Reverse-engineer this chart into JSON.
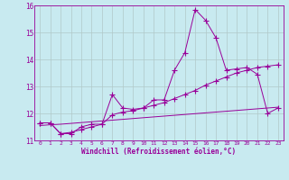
{
  "xlabel": "Windchill (Refroidissement éolien,°C)",
  "background_color": "#c8eaf0",
  "line_color": "#990099",
  "grid_color": "#b0c8c8",
  "xlim": [
    -0.5,
    23.5
  ],
  "ylim": [
    11,
    16
  ],
  "yticks": [
    11,
    12,
    13,
    14,
    15,
    16
  ],
  "xticks": [
    0,
    1,
    2,
    3,
    4,
    5,
    6,
    7,
    8,
    9,
    10,
    11,
    12,
    13,
    14,
    15,
    16,
    17,
    18,
    19,
    20,
    21,
    22,
    23
  ],
  "series1_x": [
    0,
    1,
    2,
    3,
    4,
    5,
    6,
    7,
    8,
    9,
    10,
    11,
    12,
    13,
    14,
    15,
    16,
    17,
    18,
    19,
    20,
    21,
    22,
    23
  ],
  "series1_y": [
    11.65,
    11.65,
    11.25,
    11.25,
    11.5,
    11.6,
    11.6,
    12.7,
    12.2,
    12.15,
    12.2,
    12.5,
    12.5,
    13.6,
    14.25,
    15.85,
    15.45,
    14.8,
    13.6,
    13.65,
    13.7,
    13.45,
    12.0,
    12.2
  ],
  "series2_x": [
    0,
    1,
    2,
    3,
    4,
    5,
    6,
    7,
    8,
    9,
    10,
    11,
    12,
    13,
    14,
    15,
    16,
    17,
    18,
    19,
    20,
    21,
    22,
    23
  ],
  "series2_y": [
    11.65,
    11.65,
    11.25,
    11.3,
    11.4,
    11.5,
    11.6,
    11.95,
    12.05,
    12.1,
    12.2,
    12.3,
    12.4,
    12.55,
    12.7,
    12.85,
    13.05,
    13.2,
    13.35,
    13.5,
    13.6,
    13.7,
    13.75,
    13.8
  ],
  "series3_x": [
    0,
    1,
    2,
    3,
    4,
    5,
    6,
    7,
    8,
    9,
    10,
    11,
    12,
    13,
    14,
    15,
    16,
    17,
    18,
    19,
    20,
    21,
    22,
    23
  ],
  "series3_y": [
    11.55,
    11.58,
    11.6,
    11.63,
    11.66,
    11.69,
    11.72,
    11.75,
    11.78,
    11.81,
    11.84,
    11.87,
    11.9,
    11.93,
    11.96,
    11.99,
    12.02,
    12.05,
    12.08,
    12.11,
    12.14,
    12.17,
    12.2,
    12.23
  ]
}
